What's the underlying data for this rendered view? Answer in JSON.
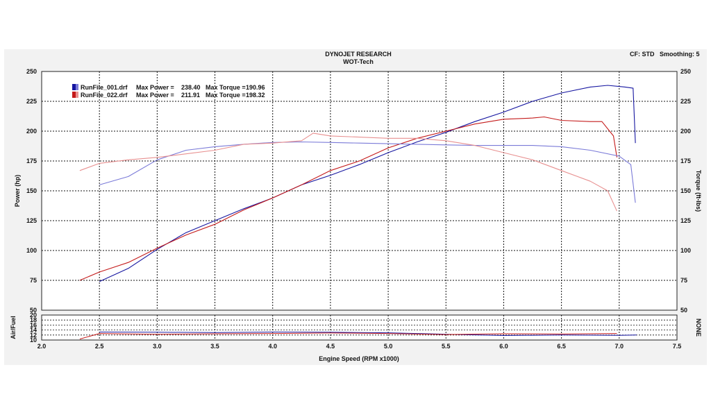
{
  "header": {
    "title": "DYNOJET RESEARCH",
    "subtitle": "WOT-Tech",
    "cf": "CF: STD",
    "smoothing": "Smoothing: 5"
  },
  "chart_data": [
    {
      "type": "line",
      "xlabel": "Engine Speed (RPM x1000)",
      "ylabel": "Power (hp)",
      "y2label": "Torque (ft-lbs)",
      "xlim": [
        2.0,
        7.5
      ],
      "ylim": [
        50,
        250
      ],
      "y2lim": [
        50,
        250
      ],
      "x_ticks": [
        "2.0",
        "2.5",
        "3.0",
        "3.5",
        "4.0",
        "4.5",
        "5.0",
        "5.5",
        "6.0",
        "6.5",
        "7.0",
        "7.5"
      ],
      "y_ticks": [
        "50",
        "75",
        "100",
        "125",
        "150",
        "175",
        "200",
        "225",
        "250"
      ],
      "grid": true,
      "legend_position": "top-left",
      "legend": [
        {
          "file": "RunFile_001.drf",
          "max_power_label": "Max Power =",
          "max_power": "238.40",
          "max_torque_label": "Max Torque =",
          "max_torque": "190.96",
          "color": "#1515a0",
          "light_color": "#7a7ad8"
        },
        {
          "file": "RunFile_022.drf",
          "max_power_label": "Max Power =",
          "max_power": "211.91",
          "max_torque_label": "Max Torque =",
          "max_torque": "198.32",
          "color": "#c41a1a",
          "light_color": "#e89090"
        }
      ],
      "series": [
        {
          "name": "RunFile_001.drf Power",
          "color": "#1515a0",
          "points": [
            [
              2.5,
              74
            ],
            [
              2.75,
              85
            ],
            [
              3.0,
              101
            ],
            [
              3.25,
              115
            ],
            [
              3.5,
              125
            ],
            [
              3.75,
              135
            ],
            [
              4.0,
              144
            ],
            [
              4.25,
              155
            ],
            [
              4.5,
              163
            ],
            [
              4.75,
              172
            ],
            [
              5.0,
              182
            ],
            [
              5.25,
              191
            ],
            [
              5.5,
              199
            ],
            [
              5.75,
              208
            ],
            [
              6.0,
              216
            ],
            [
              6.25,
              225
            ],
            [
              6.5,
              232
            ],
            [
              6.75,
              237
            ],
            [
              6.9,
              238.4
            ],
            [
              7.05,
              237
            ],
            [
              7.12,
              236
            ],
            [
              7.14,
              190
            ]
          ]
        },
        {
          "name": "RunFile_022.drf Power",
          "color": "#c41a1a",
          "points": [
            [
              2.33,
              75
            ],
            [
              2.5,
              82
            ],
            [
              2.75,
              90
            ],
            [
              3.0,
              102
            ],
            [
              3.25,
              113
            ],
            [
              3.5,
              122
            ],
            [
              3.75,
              134
            ],
            [
              4.0,
              144
            ],
            [
              4.25,
              155
            ],
            [
              4.5,
              167
            ],
            [
              4.75,
              175
            ],
            [
              5.0,
              186
            ],
            [
              5.25,
              194
            ],
            [
              5.5,
              200
            ],
            [
              5.75,
              206
            ],
            [
              6.0,
              210
            ],
            [
              6.25,
              211
            ],
            [
              6.35,
              211.9
            ],
            [
              6.5,
              209
            ],
            [
              6.75,
              208
            ],
            [
              6.85,
              208
            ],
            [
              6.95,
              196
            ],
            [
              6.98,
              178
            ]
          ]
        },
        {
          "name": "RunFile_001.drf Torque",
          "color": "#7a7ad8",
          "points": [
            [
              2.5,
              155
            ],
            [
              2.75,
              162
            ],
            [
              3.0,
              176
            ],
            [
              3.25,
              184
            ],
            [
              3.5,
              187
            ],
            [
              3.75,
              189
            ],
            [
              4.0,
              190.5
            ],
            [
              4.25,
              190.96
            ],
            [
              4.5,
              190.5
            ],
            [
              4.75,
              190
            ],
            [
              5.0,
              189.5
            ],
            [
              5.25,
              189
            ],
            [
              5.5,
              188.5
            ],
            [
              5.75,
              188
            ],
            [
              6.0,
              188
            ],
            [
              6.25,
              188
            ],
            [
              6.5,
              187
            ],
            [
              6.75,
              184
            ],
            [
              7.0,
              179
            ],
            [
              7.1,
              172
            ],
            [
              7.14,
              140
            ]
          ]
        },
        {
          "name": "RunFile_022.drf Torque",
          "color": "#e89090",
          "points": [
            [
              2.33,
              167
            ],
            [
              2.5,
              173
            ],
            [
              2.75,
              176
            ],
            [
              3.0,
              178
            ],
            [
              3.25,
              181
            ],
            [
              3.5,
              184
            ],
            [
              3.75,
              189
            ],
            [
              4.0,
              190
            ],
            [
              4.25,
              192
            ],
            [
              4.35,
              198.32
            ],
            [
              4.5,
              196
            ],
            [
              4.75,
              195
            ],
            [
              5.0,
              194
            ],
            [
              5.25,
              194
            ],
            [
              5.5,
              192
            ],
            [
              5.75,
              188
            ],
            [
              6.0,
              182
            ],
            [
              6.25,
              176
            ],
            [
              6.5,
              167
            ],
            [
              6.75,
              158
            ],
            [
              6.9,
              150
            ],
            [
              6.98,
              133
            ]
          ]
        }
      ]
    },
    {
      "type": "line",
      "ylabel": "Air/Fuel",
      "y2label": "NONE",
      "xlim": [
        2.0,
        7.5
      ],
      "ylim": [
        10,
        20
      ],
      "y_ticks": [
        "10",
        "12",
        "14",
        "16",
        "18",
        "20"
      ],
      "grid": true,
      "series": [
        {
          "name": "RunFile_001.drf AFR",
          "color": "#1515a0",
          "points": [
            [
              2.5,
              13.2
            ],
            [
              3.0,
              13.1
            ],
            [
              3.5,
              13.0
            ],
            [
              4.0,
              13.2
            ],
            [
              4.5,
              13.1
            ],
            [
              5.0,
              12.9
            ],
            [
              5.5,
              12.3
            ],
            [
              6.0,
              11.8
            ],
            [
              6.5,
              12.0
            ],
            [
              7.0,
              11.9
            ],
            [
              7.15,
              12.0
            ]
          ]
        },
        {
          "name": "RunFile_022.drf AFR",
          "color": "#c41a1a",
          "points": [
            [
              2.33,
              10.4
            ],
            [
              2.5,
              12.6
            ],
            [
              3.0,
              12.3
            ],
            [
              3.5,
              12.5
            ],
            [
              4.0,
              12.6
            ],
            [
              4.5,
              12.8
            ],
            [
              5.0,
              12.6
            ],
            [
              5.5,
              12.2
            ],
            [
              6.0,
              12.5
            ],
            [
              6.5,
              12.4
            ],
            [
              6.98,
              12.6
            ]
          ]
        }
      ]
    }
  ]
}
